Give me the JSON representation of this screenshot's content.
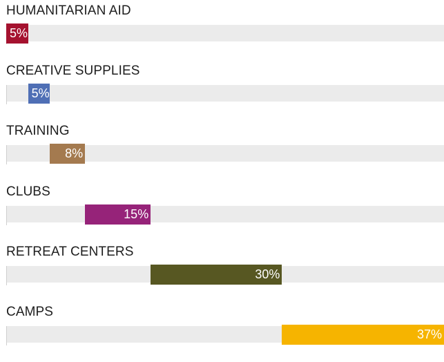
{
  "chart_data": {
    "type": "bar",
    "orientation": "horizontal-waterfall",
    "categories": [
      "HUMANITARIAN AID",
      "CREATIVE SUPPLIES",
      "TRAINING",
      "CLUBS",
      "RETREAT CENTERS",
      "CAMPS"
    ],
    "values": [
      5,
      5,
      8,
      15,
      30,
      37
    ],
    "value_labels": [
      "5%",
      "5%",
      "8%",
      "15%",
      "30%",
      "37%"
    ],
    "colors": [
      "#a5122f",
      "#4f6fb5",
      "#a47a4f",
      "#962379",
      "#575722",
      "#f6b400"
    ],
    "xlim": [
      0,
      100
    ],
    "title": "",
    "xlabel": "",
    "ylabel": "",
    "grid": false,
    "legend": "none"
  }
}
